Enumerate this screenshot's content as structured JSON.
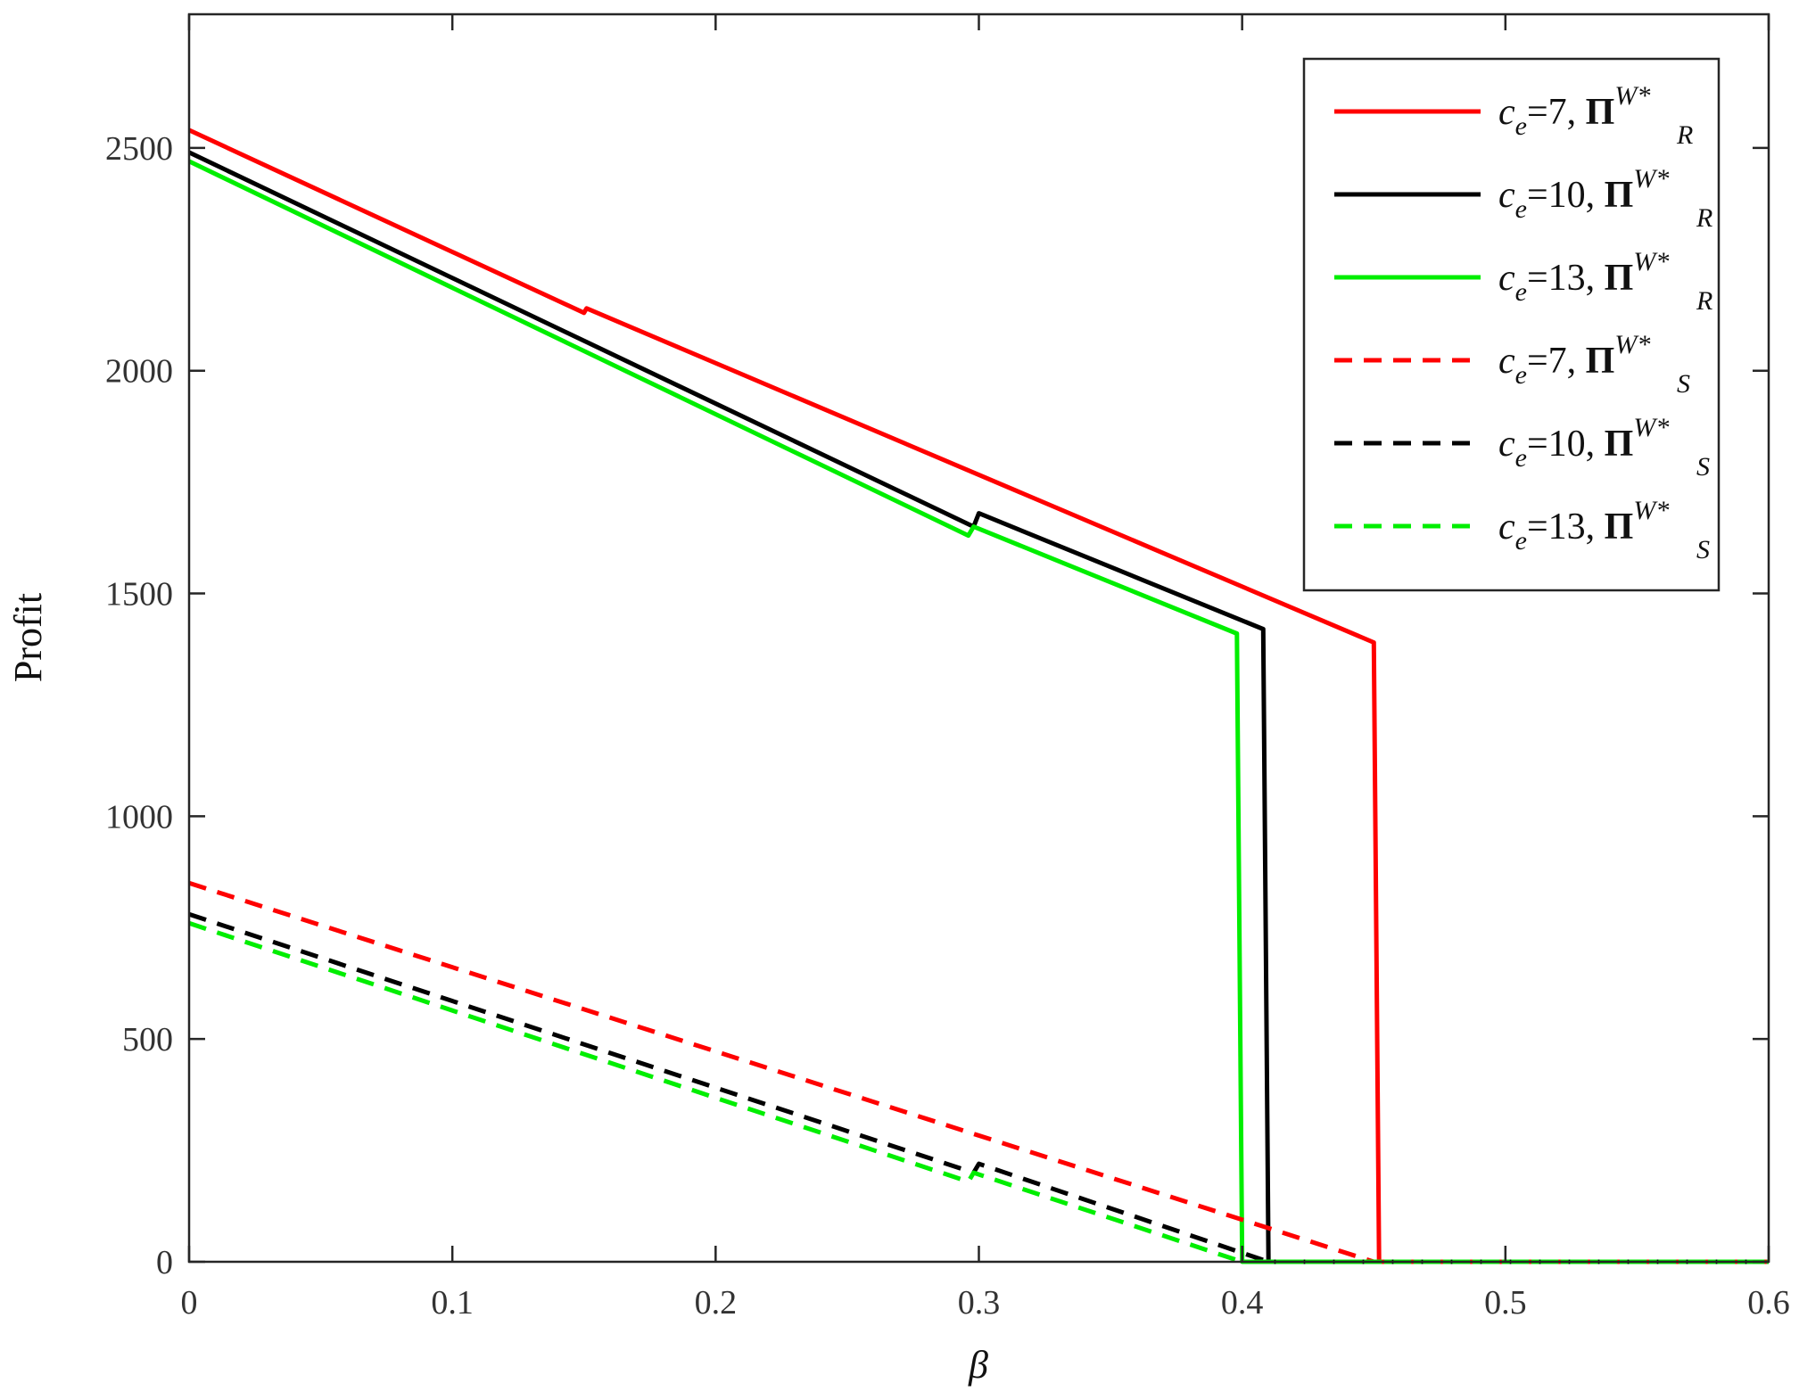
{
  "chart_data": {
    "type": "line",
    "xlabel": "β",
    "ylabel": "Profit",
    "xlim": [
      0,
      0.6
    ],
    "ylim": [
      0,
      2800
    ],
    "x_ticks": [
      "0",
      "0.1",
      "0.2",
      "0.3",
      "0.4",
      "0.5",
      "0.6"
    ],
    "y_ticks": [
      "0",
      "500",
      "1000",
      "1500",
      "2000",
      "2500"
    ],
    "grid": false,
    "legend_position": "top-right",
    "series": [
      {
        "name": "c_e=7, Π_R^W*",
        "legend": {
          "ce": "c",
          "sub": "e",
          "eq": "=7, ",
          "pi": "Π",
          "sup": "W*",
          "role": "R"
        },
        "color": "#ff0000",
        "style": "solid",
        "points": [
          [
            0,
            2540
          ],
          [
            0.15,
            2130
          ],
          [
            0.151,
            2140
          ],
          [
            0.45,
            1390
          ],
          [
            0.452,
            0
          ],
          [
            0.6,
            0
          ]
        ]
      },
      {
        "name": "c_e=10, Π_R^W*",
        "legend": {
          "ce": "c",
          "sub": "e",
          "eq": "=10, ",
          "pi": "Π",
          "sup": "W*",
          "role": "R"
        },
        "color": "#000000",
        "style": "solid",
        "points": [
          [
            0,
            2490
          ],
          [
            0.298,
            1650
          ],
          [
            0.3,
            1680
          ],
          [
            0.408,
            1420
          ],
          [
            0.41,
            0
          ],
          [
            0.6,
            0
          ]
        ]
      },
      {
        "name": "c_e=13, Π_R^W*",
        "legend": {
          "ce": "c",
          "sub": "e",
          "eq": "=13, ",
          "pi": "Π",
          "sup": "W*",
          "role": "R"
        },
        "color": "#00ee00",
        "style": "solid",
        "points": [
          [
            0,
            2470
          ],
          [
            0.296,
            1630
          ],
          [
            0.298,
            1650
          ],
          [
            0.398,
            1410
          ],
          [
            0.4,
            0
          ],
          [
            0.6,
            0
          ]
        ]
      },
      {
        "name": "c_e=7, Π_S^W*",
        "legend": {
          "ce": "c",
          "sub": "e",
          "eq": "=7, ",
          "pi": "Π",
          "sup": "W*",
          "role": "S"
        },
        "color": "#ff0000",
        "style": "dashed",
        "points": [
          [
            0,
            850
          ],
          [
            0.45,
            0
          ],
          [
            0.6,
            0
          ]
        ]
      },
      {
        "name": "c_e=10, Π_S^W*",
        "legend": {
          "ce": "c",
          "sub": "e",
          "eq": "=10, ",
          "pi": "Π",
          "sup": "W*",
          "role": "S"
        },
        "color": "#000000",
        "style": "dashed",
        "points": [
          [
            0,
            780
          ],
          [
            0.298,
            200
          ],
          [
            0.3,
            220
          ],
          [
            0.41,
            0
          ],
          [
            0.6,
            0
          ]
        ]
      },
      {
        "name": "c_e=13, Π_S^W*",
        "legend": {
          "ce": "c",
          "sub": "e",
          "eq": "=13, ",
          "pi": "Π",
          "sup": "W*",
          "role": "S"
        },
        "color": "#00ee00",
        "style": "dashed",
        "points": [
          [
            0,
            760
          ],
          [
            0.296,
            180
          ],
          [
            0.298,
            200
          ],
          [
            0.4,
            0
          ],
          [
            0.6,
            0
          ]
        ]
      }
    ]
  }
}
